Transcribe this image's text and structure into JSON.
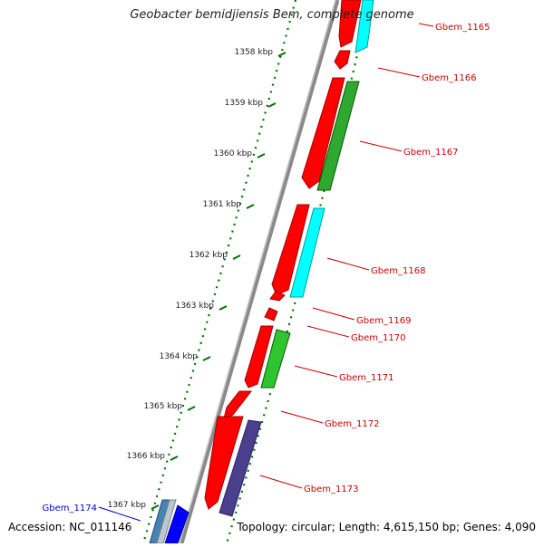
{
  "title": "Geobacter bemidjiensis Bem, complete genome",
  "accession": "Accession: NC_011146",
  "summary": "Topology: circular; Length: 4,615,150 bp; Genes: 4,090",
  "colors": {
    "backbone": "#808080",
    "tick": "#007000",
    "label_red": "#cc0000",
    "label_blue": "#0000cc"
  },
  "ticks": [
    "1358 kbp",
    "1359 kbp",
    "1360 kbp",
    "1361 kbp",
    "1362 kbp",
    "1363 kbp",
    "1364 kbp",
    "1365 kbp",
    "1366 kbp",
    "1367 kbp"
  ],
  "genes": [
    {
      "name": "Gbem_1165",
      "color": "red"
    },
    {
      "name": "Gbem_1166",
      "color": "red"
    },
    {
      "name": "Gbem_1167",
      "color": "red"
    },
    {
      "name": "Gbem_1168",
      "color": "red"
    },
    {
      "name": "Gbem_1169",
      "color": "red"
    },
    {
      "name": "Gbem_1170",
      "color": "red"
    },
    {
      "name": "Gbem_1171",
      "color": "red"
    },
    {
      "name": "Gbem_1172",
      "color": "red"
    },
    {
      "name": "Gbem_1173",
      "color": "red"
    },
    {
      "name": "Gbem_1174",
      "color": "blue"
    }
  ]
}
